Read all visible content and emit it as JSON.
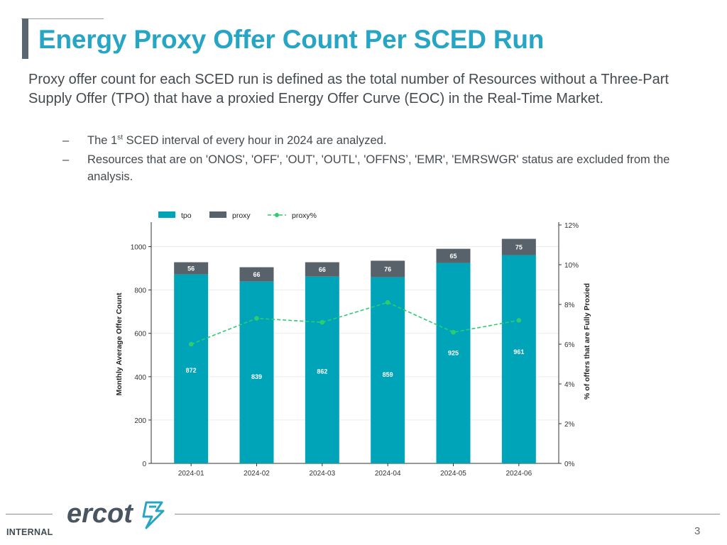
{
  "header": {
    "title": "Energy Proxy Offer Count Per SCED Run"
  },
  "body": {
    "paragraph": "Proxy offer count for each SCED run is defined as the total number of Resources without a Three-Part Supply Offer (TPO) that have a proxied Energy Offer Curve (EOC) in the Real-Time Market.",
    "bullets": [
      {
        "dash": "–",
        "pre": "The 1",
        "sup": "st",
        "post": " SCED interval of every hour in 2024 are analyzed."
      },
      {
        "dash": "–",
        "text": "Resources that are on 'ONOS', 'OFF', 'OUT', 'OUTL', 'OFFNS’, 'EMR', 'EMRSWGR'  status are excluded from the analysis."
      }
    ]
  },
  "chart_data": {
    "type": "bar",
    "stacked": true,
    "categories": [
      "2024-01",
      "2024-02",
      "2024-03",
      "2024-04",
      "2024-05",
      "2024-06"
    ],
    "series": [
      {
        "name": "tpo",
        "values": [
          872,
          839,
          862,
          859,
          925,
          961
        ],
        "color": "#00a4b8"
      },
      {
        "name": "proxy",
        "values": [
          56,
          66,
          66,
          76,
          65,
          75
        ],
        "color": "#58626a"
      }
    ],
    "line_series": {
      "name": "proxy%",
      "values": [
        6.0,
        7.3,
        7.1,
        8.1,
        6.6,
        7.2
      ],
      "color": "#2ecc71",
      "axis": "right"
    },
    "legend": [
      "tpo",
      "proxy",
      "proxy%"
    ],
    "ylabel": "Monthly Average Offer Count",
    "y2label": "% of offers that are Fully Proxied",
    "ylim": [
      0,
      1100
    ],
    "yticks": [
      0,
      200,
      400,
      600,
      800,
      1000
    ],
    "y2lim": [
      0,
      12
    ],
    "y2ticks": [
      "0%",
      "2%",
      "4%",
      "6%",
      "8%",
      "10%",
      "12%"
    ],
    "grid": true
  },
  "footer": {
    "label": "INTERNAL",
    "logo_text": "ercot",
    "page": "3"
  },
  "colors": {
    "title": "#27a5c4",
    "accent_bar": "#5b6770",
    "tpo": "#00a4b8",
    "proxy": "#58626a",
    "proxy_pct": "#2ecc71"
  }
}
